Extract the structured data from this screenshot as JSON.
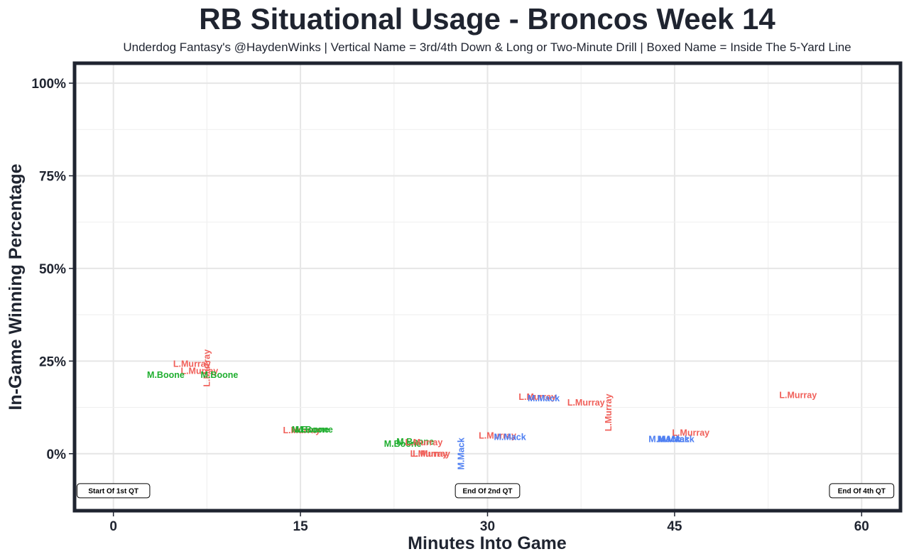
{
  "chart_data": {
    "type": "scatter",
    "title": "RB Situational Usage - Broncos Week 14",
    "subtitle": "Underdog Fantasy's @HaydenWinks | Vertical Name = 3rd/4th Down & Long or Two-Minute Drill | Boxed Name = Inside The 5-Yard Line",
    "xlabel": "Minutes Into Game",
    "ylabel": "In-Game Winning Percentage",
    "xlim": [
      -3,
      63
    ],
    "ylim": [
      -15,
      105
    ],
    "x_ticks": [
      0,
      15,
      30,
      45,
      60
    ],
    "x_tick_labels": [
      "0",
      "15",
      "30",
      "45",
      "60"
    ],
    "y_ticks": [
      0,
      25,
      50,
      75,
      100
    ],
    "y_tick_labels": [
      "0%",
      "25%",
      "50%",
      "75%",
      "100%"
    ],
    "grid": true,
    "colors": {
      "L.Murray": "#f0605a",
      "M.Boone": "#1fae2f",
      "M.Mack": "#4d7ef2"
    },
    "points": [
      {
        "player": "L.Murray",
        "x": 6.3,
        "y": 24.2,
        "vertical": false
      },
      {
        "player": "L.Murray",
        "x": 6.9,
        "y": 22.3,
        "vertical": false
      },
      {
        "player": "L.Murray",
        "x": 7.5,
        "y": 23.1,
        "vertical": true
      },
      {
        "player": "M.Boone",
        "x": 4.2,
        "y": 21.2,
        "vertical": false
      },
      {
        "player": "M.Boone",
        "x": 8.5,
        "y": 21.2,
        "vertical": false
      },
      {
        "player": "L.Murray",
        "x": 15.1,
        "y": 6.3,
        "vertical": false
      },
      {
        "player": "M.Boone",
        "x": 15.8,
        "y": 6.5,
        "vertical": false
      },
      {
        "player": "M.Boone",
        "x": 16.1,
        "y": 6.5,
        "vertical": false
      },
      {
        "player": "M.Boone",
        "x": 23.2,
        "y": 2.6,
        "vertical": false
      },
      {
        "player": "M.Boone",
        "x": 24.2,
        "y": 3.2,
        "vertical": false
      },
      {
        "player": "L.Murray",
        "x": 24.9,
        "y": 3.0,
        "vertical": false
      },
      {
        "player": "L.Murray",
        "x": 25.3,
        "y": 0.0,
        "vertical": false
      },
      {
        "player": "L.Murray",
        "x": 25.5,
        "y": 0.0,
        "vertical": false
      },
      {
        "player": "M.Mack",
        "x": 27.9,
        "y": 0.0,
        "vertical": true
      },
      {
        "player": "L.Murray",
        "x": 30.8,
        "y": 4.8,
        "vertical": false
      },
      {
        "player": "M.Mack",
        "x": 31.8,
        "y": 4.5,
        "vertical": false
      },
      {
        "player": "L.Murray",
        "x": 34.0,
        "y": 15.3,
        "vertical": false
      },
      {
        "player": "M.Mack",
        "x": 34.5,
        "y": 14.9,
        "vertical": false
      },
      {
        "player": "L.Murray",
        "x": 37.9,
        "y": 13.8,
        "vertical": false
      },
      {
        "player": "L.Murray",
        "x": 39.7,
        "y": 11.1,
        "vertical": true
      },
      {
        "player": "M.Mack",
        "x": 44.2,
        "y": 3.9,
        "vertical": false
      },
      {
        "player": "M.Mack",
        "x": 44.9,
        "y": 3.9,
        "vertical": false
      },
      {
        "player": "M.Mack",
        "x": 45.3,
        "y": 3.9,
        "vertical": false
      },
      {
        "player": "L.Murray",
        "x": 46.3,
        "y": 5.6,
        "vertical": false
      },
      {
        "player": "L.Murray",
        "x": 54.9,
        "y": 15.8,
        "vertical": false
      }
    ],
    "annotations": [
      {
        "text": "Start Of 1st QT",
        "x": 0
      },
      {
        "text": "End Of 2nd QT",
        "x": 30
      },
      {
        "text": "End Of 4th QT",
        "x": 60
      }
    ],
    "annotation_y": -10
  }
}
